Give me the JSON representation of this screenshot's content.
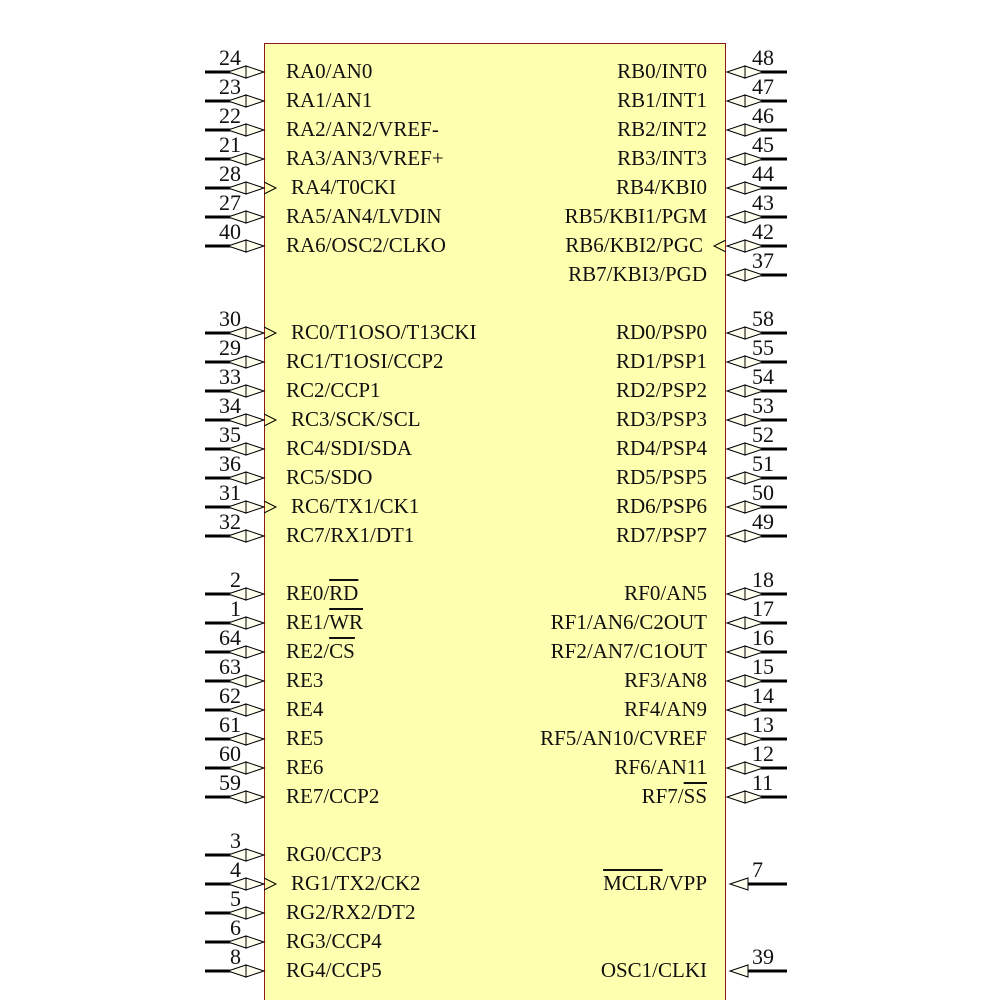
{
  "colors": {
    "body_fill": "#ffffb0",
    "body_border": "#8b1a1a",
    "pin": "#000000"
  },
  "left_pins": [
    {
      "row": 0,
      "num": "24",
      "pre": "RA0/AN0",
      "type": "bidir"
    },
    {
      "row": 1,
      "num": "23",
      "pre": "RA1/AN1",
      "type": "bidir"
    },
    {
      "row": 2,
      "num": "22",
      "pre": "RA2/AN2/VREF-",
      "type": "bidir"
    },
    {
      "row": 3,
      "num": "21",
      "pre": "RA3/AN3/VREF+",
      "type": "bidir"
    },
    {
      "row": 4,
      "num": "28",
      "pre": "RA4/T0CKI",
      "type": "bidir",
      "clock": true
    },
    {
      "row": 5,
      "num": "27",
      "pre": "RA5/AN4/LVDIN",
      "type": "bidir"
    },
    {
      "row": 6,
      "num": "40",
      "pre": "RA6/OSC2/CLKO",
      "type": "bidir"
    },
    {
      "row": 9,
      "num": "30",
      "pre": "RC0/T1OSO/T13CKI",
      "type": "bidir",
      "clock": true
    },
    {
      "row": 10,
      "num": "29",
      "pre": "RC1/T1OSI/CCP2",
      "type": "bidir"
    },
    {
      "row": 11,
      "num": "33",
      "pre": "RC2/CCP1",
      "type": "bidir"
    },
    {
      "row": 12,
      "num": "34",
      "pre": "RC3/SCK/SCL",
      "type": "bidir",
      "clock": true
    },
    {
      "row": 13,
      "num": "35",
      "pre": "RC4/SDI/SDA",
      "type": "bidir"
    },
    {
      "row": 14,
      "num": "36",
      "pre": "RC5/SDO",
      "type": "bidir"
    },
    {
      "row": 15,
      "num": "31",
      "pre": "RC6/TX1/CK1",
      "type": "bidir",
      "clock": true
    },
    {
      "row": 16,
      "num": "32",
      "pre": "RC7/RX1/DT1",
      "type": "bidir"
    },
    {
      "row": 18,
      "num": "2",
      "pre": "RE0/",
      "bar": "RD",
      "type": "bidir"
    },
    {
      "row": 19,
      "num": "1",
      "pre": "RE1/",
      "bar": "WR",
      "type": "bidir"
    },
    {
      "row": 20,
      "num": "64",
      "pre": "RE2/",
      "bar": "CS",
      "type": "bidir"
    },
    {
      "row": 21,
      "num": "63",
      "pre": "RE3",
      "type": "bidir"
    },
    {
      "row": 22,
      "num": "62",
      "pre": "RE4",
      "type": "bidir"
    },
    {
      "row": 23,
      "num": "61",
      "pre": "RE5",
      "type": "bidir"
    },
    {
      "row": 24,
      "num": "60",
      "pre": "RE6",
      "type": "bidir"
    },
    {
      "row": 25,
      "num": "59",
      "pre": "RE7/CCP2",
      "type": "bidir"
    },
    {
      "row": 27,
      "num": "3",
      "pre": "RG0/CCP3",
      "type": "bidir"
    },
    {
      "row": 28,
      "num": "4",
      "pre": "RG1/TX2/CK2",
      "type": "bidir",
      "clock": true
    },
    {
      "row": 29,
      "num": "5",
      "pre": "RG2/RX2/DT2",
      "type": "bidir"
    },
    {
      "row": 30,
      "num": "6",
      "pre": "RG3/CCP4",
      "type": "bidir"
    },
    {
      "row": 31,
      "num": "8",
      "pre": "RG4/CCP5",
      "type": "bidir"
    }
  ],
  "right_pins": [
    {
      "row": 0,
      "num": "48",
      "pre": "RB0/INT0",
      "type": "bidir"
    },
    {
      "row": 1,
      "num": "47",
      "pre": "RB1/INT1",
      "type": "bidir"
    },
    {
      "row": 2,
      "num": "46",
      "pre": "RB2/INT2",
      "type": "bidir"
    },
    {
      "row": 3,
      "num": "45",
      "pre": "RB3/INT3",
      "type": "bidir"
    },
    {
      "row": 4,
      "num": "44",
      "pre": "RB4/KBI0",
      "type": "bidir"
    },
    {
      "row": 5,
      "num": "43",
      "pre": "RB5/KBI1/PGM",
      "type": "bidir"
    },
    {
      "row": 6,
      "num": "42",
      "pre": "RB6/KBI2/PGC",
      "type": "bidir",
      "clock": true
    },
    {
      "row": 7,
      "num": "37",
      "pre": "RB7/KBI3/PGD",
      "type": "bidir"
    },
    {
      "row": 9,
      "num": "58",
      "pre": "RD0/PSP0",
      "type": "bidir"
    },
    {
      "row": 10,
      "num": "55",
      "pre": "RD1/PSP1",
      "type": "bidir"
    },
    {
      "row": 11,
      "num": "54",
      "pre": "RD2/PSP2",
      "type": "bidir"
    },
    {
      "row": 12,
      "num": "53",
      "pre": "RD3/PSP3",
      "type": "bidir"
    },
    {
      "row": 13,
      "num": "52",
      "pre": "RD4/PSP4",
      "type": "bidir"
    },
    {
      "row": 14,
      "num": "51",
      "pre": "RD5/PSP5",
      "type": "bidir"
    },
    {
      "row": 15,
      "num": "50",
      "pre": "RD6/PSP6",
      "type": "bidir"
    },
    {
      "row": 16,
      "num": "49",
      "pre": "RD7/PSP7",
      "type": "bidir"
    },
    {
      "row": 18,
      "num": "18",
      "pre": "RF0/AN5",
      "type": "bidir"
    },
    {
      "row": 19,
      "num": "17",
      "pre": "RF1/AN6/C2OUT",
      "type": "bidir"
    },
    {
      "row": 20,
      "num": "16",
      "pre": "RF2/AN7/C1OUT",
      "type": "bidir"
    },
    {
      "row": 21,
      "num": "15",
      "pre": "RF3/AN8",
      "type": "bidir"
    },
    {
      "row": 22,
      "num": "14",
      "pre": "RF4/AN9",
      "type": "bidir"
    },
    {
      "row": 23,
      "num": "13",
      "pre": "RF5/AN10/CVREF",
      "type": "bidir"
    },
    {
      "row": 24,
      "num": "12",
      "pre": "RF6/AN11",
      "type": "bidir"
    },
    {
      "row": 25,
      "num": "11",
      "pre": "RF7/",
      "bar": "SS",
      "type": "bidir"
    },
    {
      "row": 28,
      "num": "7",
      "pre": "",
      "bar": "MCLR",
      "post": "/VPP",
      "type": "input"
    },
    {
      "row": 31,
      "num": "39",
      "pre": "OSC1/CLKI",
      "type": "input"
    }
  ]
}
